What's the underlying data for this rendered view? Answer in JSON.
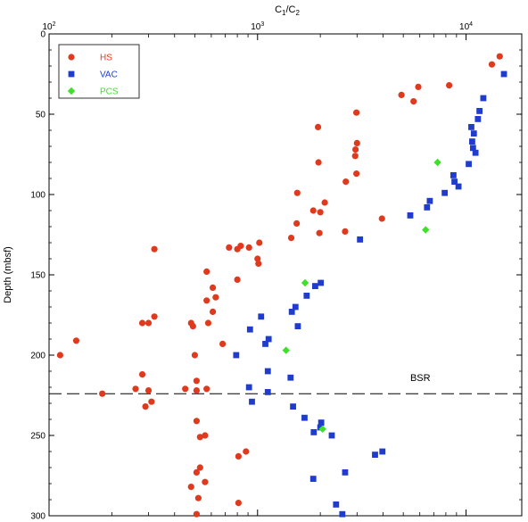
{
  "chart_data": {
    "type": "scatter",
    "x_axis": {
      "label": "C1/C2",
      "label_main": "C",
      "label_sub1": "1",
      "label_slash": "/C",
      "label_sub2": "2",
      "scale": "log",
      "position": "top",
      "xlim": [
        100,
        18500
      ],
      "ticks": [
        100,
        1000,
        10000
      ],
      "tick_labels": [
        {
          "base": "10",
          "exp": "2"
        },
        {
          "base": "10",
          "exp": "3"
        },
        {
          "base": "10",
          "exp": "4"
        }
      ]
    },
    "y_axis": {
      "label": "Depth (mbsf)",
      "inverted": true,
      "ylim": [
        0,
        300
      ],
      "ticks": [
        0,
        50,
        100,
        150,
        200,
        250,
        300
      ]
    },
    "grid": false,
    "legend": {
      "placement": "top-left",
      "entries": [
        {
          "name": "HS",
          "marker": "circle",
          "color": "#e03a1e"
        },
        {
          "name": "VAC",
          "marker": "square",
          "color": "#1f3ccc"
        },
        {
          "name": "PCS",
          "marker": "diamond",
          "color": "#3ee12a"
        }
      ]
    },
    "reference_lines": [
      {
        "type": "horizontal",
        "y": 224,
        "style": "dashed",
        "label": "BSR"
      }
    ],
    "series": [
      {
        "name": "HS",
        "marker": "circle",
        "color": "#e03a1e",
        "points": [
          [
            14500,
            14
          ],
          [
            13300,
            19
          ],
          [
            8300,
            32
          ],
          [
            5900,
            33
          ],
          [
            4900,
            38
          ],
          [
            5600,
            42
          ],
          [
            2980,
            49
          ],
          [
            1950,
            58
          ],
          [
            3000,
            68
          ],
          [
            2950,
            72
          ],
          [
            2940,
            76
          ],
          [
            1960,
            80
          ],
          [
            2980,
            87
          ],
          [
            2650,
            92
          ],
          [
            1550,
            99
          ],
          [
            2100,
            105
          ],
          [
            1850,
            110
          ],
          [
            2000,
            111
          ],
          [
            3950,
            115
          ],
          [
            1540,
            118
          ],
          [
            2630,
            123
          ],
          [
            1980,
            124
          ],
          [
            1450,
            127
          ],
          [
            1020,
            130
          ],
          [
            830,
            132
          ],
          [
            730,
            133
          ],
          [
            800,
            134
          ],
          [
            320,
            134
          ],
          [
            910,
            133
          ],
          [
            1000,
            140
          ],
          [
            1010,
            143
          ],
          [
            570,
            148
          ],
          [
            800,
            153
          ],
          [
            610,
            158
          ],
          [
            630,
            164
          ],
          [
            570,
            166
          ],
          [
            320,
            176
          ],
          [
            610,
            173
          ],
          [
            280,
            180
          ],
          [
            300,
            180
          ],
          [
            580,
            180
          ],
          [
            480,
            180
          ],
          [
            490,
            182
          ],
          [
            680,
            193
          ],
          [
            135,
            191
          ],
          [
            113,
            200
          ],
          [
            500,
            200
          ],
          [
            280,
            212
          ],
          [
            510,
            216
          ],
          [
            570,
            221
          ],
          [
            450,
            221
          ],
          [
            300,
            222
          ],
          [
            260,
            221
          ],
          [
            510,
            222
          ],
          [
            180,
            224
          ],
          [
            310,
            229
          ],
          [
            290,
            232
          ],
          [
            510,
            241
          ],
          [
            560,
            250
          ],
          [
            530,
            251
          ],
          [
            880,
            260
          ],
          [
            810,
            263
          ],
          [
            530,
            270
          ],
          [
            510,
            273
          ],
          [
            560,
            279
          ],
          [
            480,
            282
          ],
          [
            520,
            289
          ],
          [
            810,
            292
          ],
          [
            510,
            299
          ]
        ]
      },
      {
        "name": "VAC",
        "marker": "square",
        "color": "#1f3ccc",
        "points": [
          [
            15200,
            25
          ],
          [
            12100,
            40
          ],
          [
            11600,
            48
          ],
          [
            11400,
            53
          ],
          [
            10600,
            58
          ],
          [
            10900,
            62
          ],
          [
            10700,
            67
          ],
          [
            10800,
            71
          ],
          [
            11100,
            74
          ],
          [
            10300,
            81
          ],
          [
            8700,
            88
          ],
          [
            8800,
            92
          ],
          [
            9200,
            95
          ],
          [
            7900,
            99
          ],
          [
            6700,
            104
          ],
          [
            6500,
            108
          ],
          [
            5400,
            113
          ],
          [
            3100,
            128
          ],
          [
            2010,
            155
          ],
          [
            1890,
            157
          ],
          [
            1720,
            163
          ],
          [
            1520,
            170
          ],
          [
            1460,
            173
          ],
          [
            1040,
            176
          ],
          [
            1560,
            182
          ],
          [
            920,
            184
          ],
          [
            1130,
            190
          ],
          [
            1090,
            193
          ],
          [
            790,
            200
          ],
          [
            1120,
            210
          ],
          [
            1440,
            214
          ],
          [
            910,
            220
          ],
          [
            1120,
            223
          ],
          [
            940,
            229
          ],
          [
            1480,
            232
          ],
          [
            1680,
            239
          ],
          [
            2020,
            242
          ],
          [
            2000,
            245
          ],
          [
            1860,
            248
          ],
          [
            2270,
            250
          ],
          [
            3970,
            260
          ],
          [
            3660,
            262
          ],
          [
            2630,
            273
          ],
          [
            1850,
            277
          ],
          [
            2380,
            293
          ],
          [
            2550,
            299
          ]
        ]
      },
      {
        "name": "PCS",
        "marker": "diamond",
        "color": "#3ee12a",
        "points": [
          [
            7300,
            80
          ],
          [
            6400,
            122
          ],
          [
            1690,
            155
          ],
          [
            1370,
            197
          ],
          [
            2050,
            246
          ]
        ]
      }
    ],
    "annotations": [
      {
        "text": "BSR",
        "x": 5400,
        "y": 224
      }
    ]
  }
}
